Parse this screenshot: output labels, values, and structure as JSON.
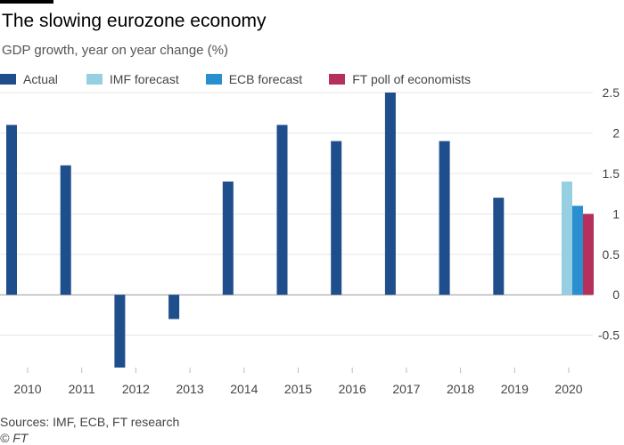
{
  "title": "The slowing eurozone economy",
  "subtitle": "GDP growth, year on year change (%)",
  "sources": "Sources: IMF, ECB, FT research",
  "credit": "© FT",
  "colors": {
    "actual": "#1f4e8c",
    "imf": "#96cfe2",
    "ecb": "#2a8fd0",
    "ft": "#b5305a",
    "grid": "#e6e6e6",
    "zero": "#999999",
    "tick_text": "#444444"
  },
  "legend": [
    {
      "label": "Actual",
      "color_key": "actual"
    },
    {
      "label": "IMF forecast",
      "color_key": "imf"
    },
    {
      "label": "ECB forecast",
      "color_key": "ecb"
    },
    {
      "label": "FT poll of economists",
      "color_key": "ft"
    }
  ],
  "chart_data": {
    "type": "bar",
    "categories": [
      "2010",
      "2011",
      "2012",
      "2013",
      "2014",
      "2015",
      "2016",
      "2017",
      "2018",
      "2019",
      "2020"
    ],
    "series": [
      {
        "name": "Actual",
        "color_key": "actual",
        "values": [
          2.1,
          1.6,
          -0.9,
          -0.3,
          1.4,
          2.1,
          1.9,
          2.5,
          1.9,
          1.2,
          null
        ]
      },
      {
        "name": "IMF forecast",
        "color_key": "imf",
        "values": [
          null,
          null,
          null,
          null,
          null,
          null,
          null,
          null,
          null,
          null,
          1.4
        ]
      },
      {
        "name": "ECB forecast",
        "color_key": "ecb",
        "values": [
          null,
          null,
          null,
          null,
          null,
          null,
          null,
          null,
          null,
          null,
          1.1
        ]
      },
      {
        "name": "FT poll of economists",
        "color_key": "ft",
        "values": [
          null,
          null,
          null,
          null,
          null,
          null,
          null,
          null,
          null,
          null,
          1.0
        ]
      }
    ],
    "ylim": [
      -0.9,
      2.5
    ],
    "yticks": [
      2.5,
      2,
      1.5,
      1,
      0.5,
      0,
      -0.5
    ],
    "ytick_labels": [
      "2.5",
      "2",
      "1.5",
      "1",
      "0.5",
      "0",
      "-0.5"
    ],
    "y_axis_side": "right",
    "grid": true,
    "legend_position": "top"
  }
}
